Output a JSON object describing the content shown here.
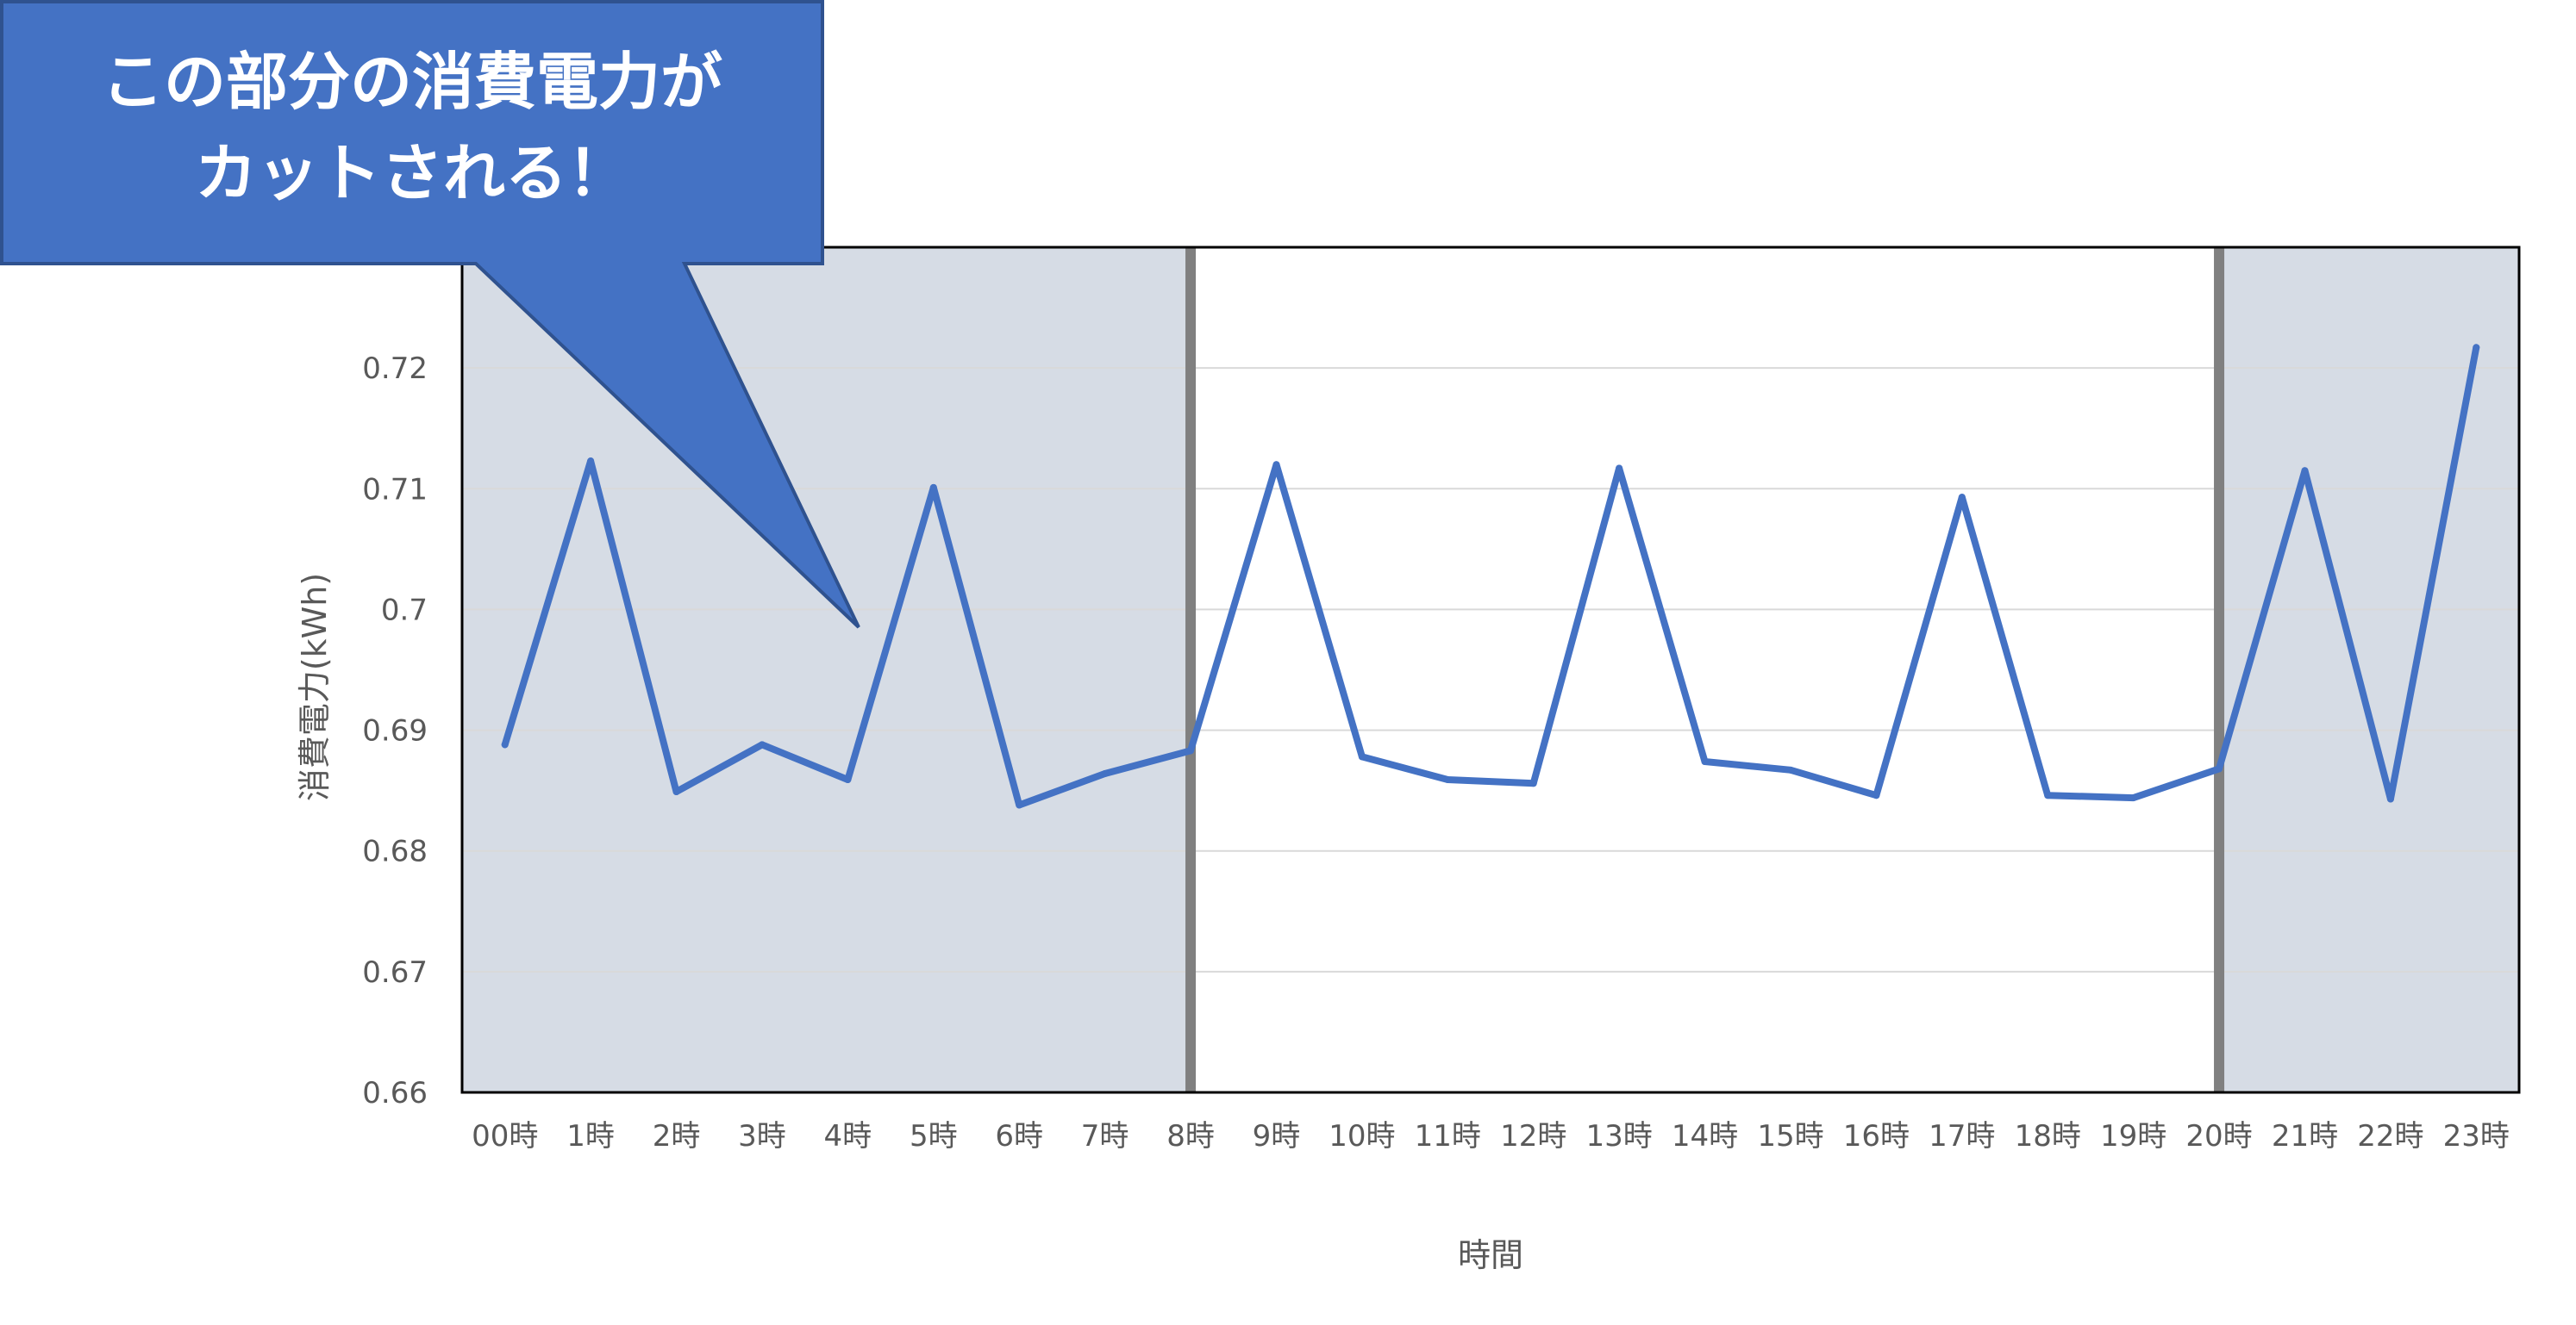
{
  "callout": {
    "line1": "この部分の消費電力が",
    "line2": "カットされる！"
  },
  "colors": {
    "line": "#4472C4",
    "shade": "#D6DCE5",
    "callout_fill": "#4472C4",
    "callout_border": "#2F528F",
    "divider": "#808080",
    "grid": "#D9D9D9",
    "text": "#595959"
  },
  "chart_data": {
    "type": "line",
    "title": "",
    "xlabel": "時間",
    "ylabel": "消費電力(kWh)",
    "ylim": [
      0.66,
      0.73
    ],
    "yticks": [
      "0.66",
      "0.67",
      "0.68",
      "0.69",
      "0.7",
      "0.71",
      "0.72"
    ],
    "grid": true,
    "categories": [
      "00時",
      "1時",
      "2時",
      "3時",
      "4時",
      "5時",
      "6時",
      "7時",
      "8時",
      "9時",
      "10時",
      "11時",
      "12時",
      "13時",
      "14時",
      "15時",
      "16時",
      "17時",
      "18時",
      "19時",
      "20時",
      "21時",
      "22時",
      "23時"
    ],
    "series": [
      {
        "values": [
          0.6888,
          0.7123,
          0.6849,
          0.6888,
          0.6859,
          0.7101,
          0.6838,
          0.6864,
          0.6883,
          0.712,
          0.6878,
          0.6859,
          0.6856,
          0.7117,
          0.6874,
          0.6867,
          0.6846,
          0.7093,
          0.6846,
          0.6844,
          0.6868,
          0.7115,
          0.6843,
          0.7217
        ]
      }
    ],
    "shaded_ranges": [
      {
        "from": "00時",
        "to": "8時"
      },
      {
        "from": "20時",
        "to": "23時"
      }
    ]
  }
}
